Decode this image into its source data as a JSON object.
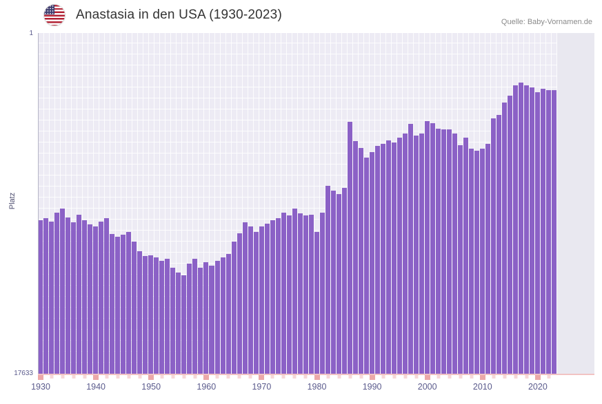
{
  "header": {
    "title": "Anastasia in den USA (1930-2023)",
    "source": "Quelle: Baby-Vornamen.de",
    "flag": "us-flag-icon"
  },
  "colors": {
    "bar": "#8b61c6",
    "plot_background": "#edebf4",
    "future_band": "#e9e8f0",
    "axis_line_pink": "#f2c3c3",
    "tick_pink": "#eca8a8",
    "tick_text": "#5a5a8c",
    "title_text": "#333333"
  },
  "chart_data": {
    "type": "bar",
    "title": "Anastasia in den USA (1930-2023)",
    "xlabel": "",
    "ylabel": "Platz",
    "legend": "none",
    "grid": true,
    "y_axis": {
      "min": 1,
      "max": 17633,
      "inverted": true,
      "scale": "linear",
      "top_label": "1",
      "bottom_label": "17633"
    },
    "x_ticks": [
      1930,
      1940,
      1950,
      1960,
      1970,
      1980,
      1990,
      2000,
      2010,
      2020
    ],
    "start_year": 1930,
    "end_year": 2023,
    "categories": [
      1930,
      1931,
      1932,
      1933,
      1934,
      1935,
      1936,
      1937,
      1938,
      1939,
      1940,
      1941,
      1942,
      1943,
      1944,
      1945,
      1946,
      1947,
      1948,
      1949,
      1950,
      1951,
      1952,
      1953,
      1954,
      1955,
      1956,
      1957,
      1958,
      1959,
      1960,
      1961,
      1962,
      1963,
      1964,
      1965,
      1966,
      1967,
      1968,
      1969,
      1970,
      1971,
      1972,
      1973,
      1974,
      1975,
      1976,
      1977,
      1978,
      1979,
      1980,
      1981,
      1982,
      1983,
      1984,
      1985,
      1986,
      1987,
      1988,
      1989,
      1990,
      1991,
      1992,
      1993,
      1994,
      1995,
      1996,
      1997,
      1998,
      1999,
      2000,
      2001,
      2002,
      2003,
      2004,
      2005,
      2006,
      2007,
      2008,
      2009,
      2010,
      2011,
      2012,
      2013,
      2014,
      2015,
      2016,
      2017,
      2018,
      2019,
      2020,
      2021,
      2022,
      2023
    ],
    "series": [
      {
        "name": "Platz",
        "values": [
          9700,
          9600,
          9750,
          9300,
          9100,
          9550,
          9800,
          9400,
          9700,
          9900,
          10000,
          9750,
          9600,
          10400,
          10550,
          10450,
          10300,
          10800,
          11300,
          11550,
          11500,
          11600,
          11800,
          11700,
          12150,
          12400,
          12550,
          11950,
          11700,
          12150,
          11850,
          12050,
          11800,
          11600,
          11450,
          10800,
          10350,
          9800,
          10000,
          10300,
          10000,
          9850,
          9700,
          9600,
          9300,
          9450,
          9100,
          9350,
          9450,
          9400,
          10300,
          9300,
          7900,
          8150,
          8350,
          8000,
          4600,
          5600,
          5950,
          6450,
          6150,
          5850,
          5750,
          5550,
          5650,
          5400,
          5200,
          4700,
          5300,
          5200,
          4550,
          4650,
          4950,
          5000,
          5000,
          5200,
          5800,
          5400,
          6000,
          6100,
          6000,
          5750,
          4400,
          4250,
          3600,
          3250,
          2700,
          2550,
          2700,
          2800,
          3050,
          2900,
          2950,
          2950
        ]
      }
    ]
  }
}
